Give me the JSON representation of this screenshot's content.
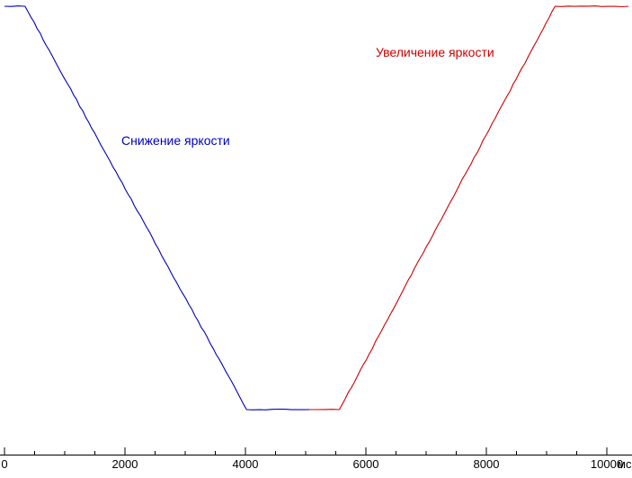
{
  "chart_data": {
    "type": "line",
    "title": "",
    "xlabel": "мс",
    "ylabel": "",
    "xlim": [
      0,
      10400
    ],
    "ylim": [
      0,
      100
    ],
    "grid": false,
    "legend_position": "inline-annotations",
    "x_ticks": [
      0,
      2000,
      4000,
      6000,
      8000,
      10000
    ],
    "x_tick_labels": [
      "0",
      "2000",
      "4000",
      "6000",
      "8000",
      "10000"
    ],
    "x_minor_tick_step": 500,
    "series": [
      {
        "name": "Снижение яркости",
        "color": "#0000bb",
        "points": [
          [
            0,
            100
          ],
          [
            340,
            100
          ],
          [
            4020,
            0
          ],
          [
            5080,
            0
          ]
        ]
      },
      {
        "name": "Увеличение яркости",
        "color": "#cc0000",
        "points": [
          [
            5060,
            0
          ],
          [
            5560,
            0
          ],
          [
            9140,
            100
          ],
          [
            10360,
            100
          ]
        ]
      }
    ],
    "annotations": [
      {
        "text": "Снижение яркости",
        "color": "#0000bb"
      },
      {
        "text": "Увеличение яркости",
        "color": "#cc0000"
      }
    ]
  },
  "axis": {
    "unit_label": "мс",
    "color": "#000000"
  }
}
